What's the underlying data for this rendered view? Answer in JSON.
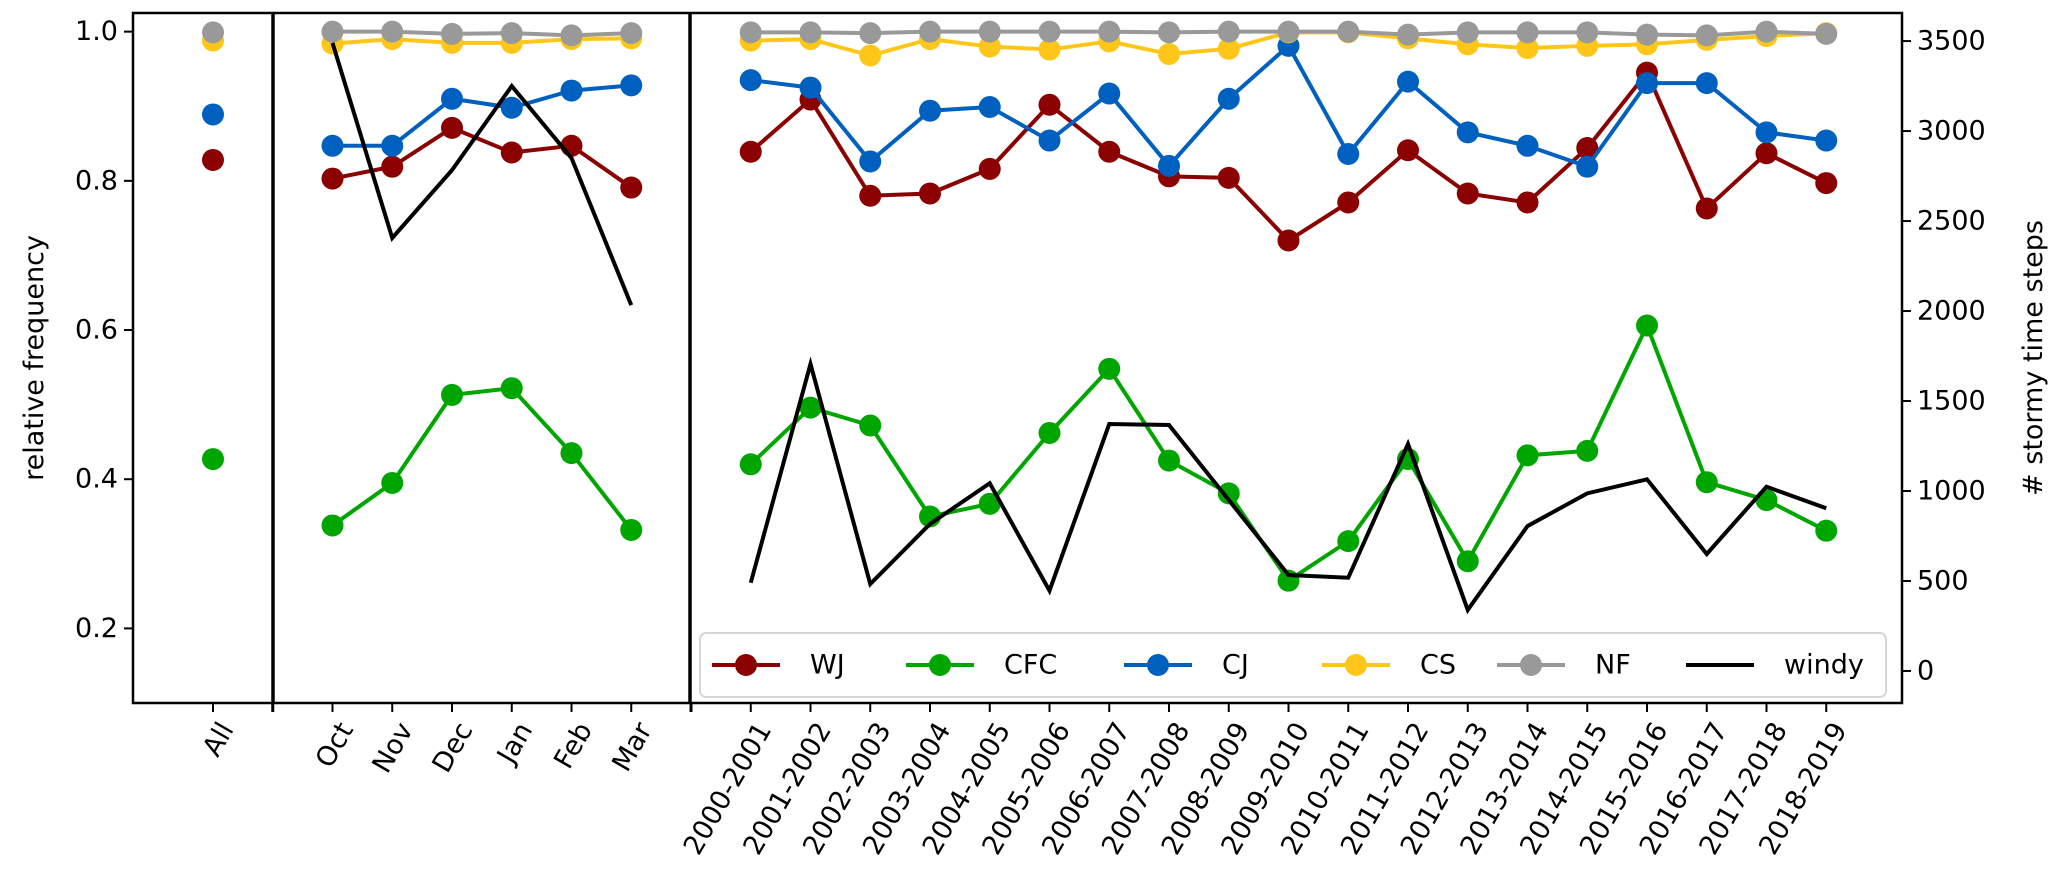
{
  "chart_data": {
    "type": "line",
    "ylabel": "relative frequency",
    "ylabel_right": "# stormy time steps",
    "ylim": [
      0.1,
      1.025
    ],
    "ylim_right": [
      -178,
      3656
    ],
    "yticks": [
      "0.2",
      "0.4",
      "0.6",
      "0.8",
      "1.0"
    ],
    "yticks_right": [
      "0",
      "500",
      "1000",
      "1500",
      "2000",
      "2500",
      "3000",
      "3500"
    ],
    "grid": false,
    "legend_position": "bottom-right",
    "groups": [
      {
        "name": "All",
        "categories": [
          "All"
        ]
      },
      {
        "name": "months",
        "categories": [
          "Oct",
          "Nov",
          "Dec",
          "Jan",
          "Feb",
          "Mar"
        ]
      },
      {
        "name": "seasons",
        "categories": [
          "2000-2001",
          "2001-2002",
          "2002-2003",
          "2003-2004",
          "2004-2005",
          "2005-2006",
          "2006-2007",
          "2007-2008",
          "2008-2009",
          "2009-2010",
          "2010-2011",
          "2011-2012",
          "2012-2013",
          "2013-2014",
          "2014-2015",
          "2015-2016",
          "2016-2017",
          "2017-2018",
          "2018-2019"
        ]
      }
    ],
    "series": [
      {
        "name": "WJ",
        "color": "#8b0000",
        "axis": "left",
        "marker": true,
        "All": [
          0.828
        ],
        "months": [
          0.803,
          0.819,
          0.871,
          0.838,
          0.847,
          0.791
        ],
        "seasons": [
          0.839,
          0.909,
          0.78,
          0.783,
          0.816,
          0.902,
          0.839,
          0.806,
          0.804,
          0.72,
          0.771,
          0.841,
          0.783,
          0.771,
          0.844,
          0.945,
          0.763,
          0.837,
          0.797
        ]
      },
      {
        "name": "CFC",
        "color": "#00a600",
        "axis": "left",
        "marker": true,
        "All": [
          0.427
        ],
        "months": [
          0.338,
          0.395,
          0.513,
          0.522,
          0.435,
          0.332
        ],
        "seasons": [
          0.42,
          0.496,
          0.472,
          0.35,
          0.367,
          0.462,
          0.548,
          0.425,
          0.381,
          0.264,
          0.317,
          0.427,
          0.29,
          0.432,
          0.438,
          0.606,
          0.396,
          0.372,
          0.331
        ]
      },
      {
        "name": "CJ",
        "color": "#0060bf",
        "axis": "left",
        "marker": true,
        "All": [
          0.889
        ],
        "months": [
          0.847,
          0.847,
          0.91,
          0.898,
          0.921,
          0.928
        ],
        "seasons": [
          0.935,
          0.925,
          0.826,
          0.894,
          0.899,
          0.854,
          0.917,
          0.82,
          0.91,
          0.981,
          0.836,
          0.933,
          0.865,
          0.847,
          0.819,
          0.931,
          0.931,
          0.865,
          0.854
        ]
      },
      {
        "name": "CS",
        "color": "#ffc61a",
        "axis": "left",
        "marker": true,
        "All": [
          0.988
        ],
        "months": [
          0.984,
          0.99,
          0.985,
          0.985,
          0.99,
          0.991
        ],
        "seasons": [
          0.988,
          0.99,
          0.968,
          0.99,
          0.98,
          0.976,
          0.987,
          0.97,
          0.977,
          0.999,
          0.999,
          0.991,
          0.983,
          0.978,
          0.981,
          0.983,
          0.989,
          0.994,
          0.998
        ]
      },
      {
        "name": "NF",
        "color": "#999999",
        "axis": "left",
        "marker": true,
        "All": [
          0.999
        ],
        "months": [
          1.0,
          1.0,
          0.997,
          0.998,
          0.995,
          0.998
        ],
        "seasons": [
          0.999,
          0.999,
          0.998,
          1.0,
          1.0,
          1.0,
          1.0,
          0.999,
          1.0,
          1.0,
          1.0,
          0.996,
          0.999,
          0.999,
          0.999,
          0.996,
          0.995,
          1.0,
          0.997
        ]
      },
      {
        "name": "windy",
        "color": "#000000",
        "axis": "right",
        "marker": false,
        "All": [],
        "months": [
          3490,
          2406,
          2783,
          3250,
          2850,
          2033
        ],
        "seasons": [
          490,
          1706,
          483,
          817,
          1043,
          446,
          1372,
          1367,
          950,
          533,
          518,
          1261,
          339,
          805,
          987,
          1065,
          650,
          1024,
          904
        ]
      }
    ]
  }
}
